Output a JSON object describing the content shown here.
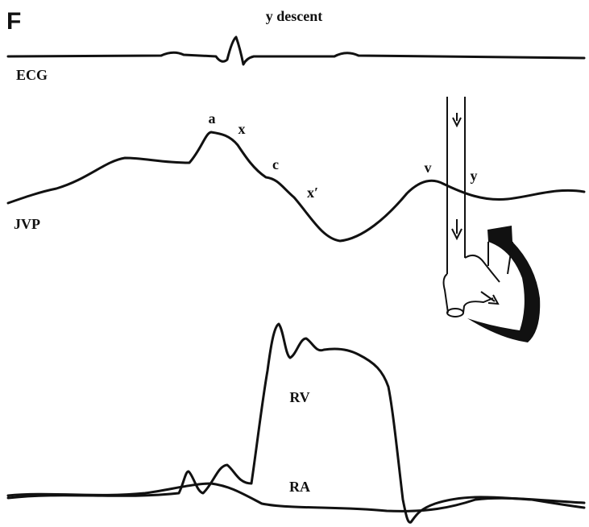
{
  "panel_label": "F",
  "title": "y descent",
  "traces": [
    {
      "label": "ECG"
    },
    {
      "label": "JVP"
    },
    {
      "label": "RV"
    },
    {
      "label": "RA"
    }
  ],
  "waves": [
    {
      "label": "a"
    },
    {
      "label": "x"
    },
    {
      "label": "c"
    },
    {
      "label": "x′"
    },
    {
      "label": "v"
    },
    {
      "label": "y"
    }
  ]
}
